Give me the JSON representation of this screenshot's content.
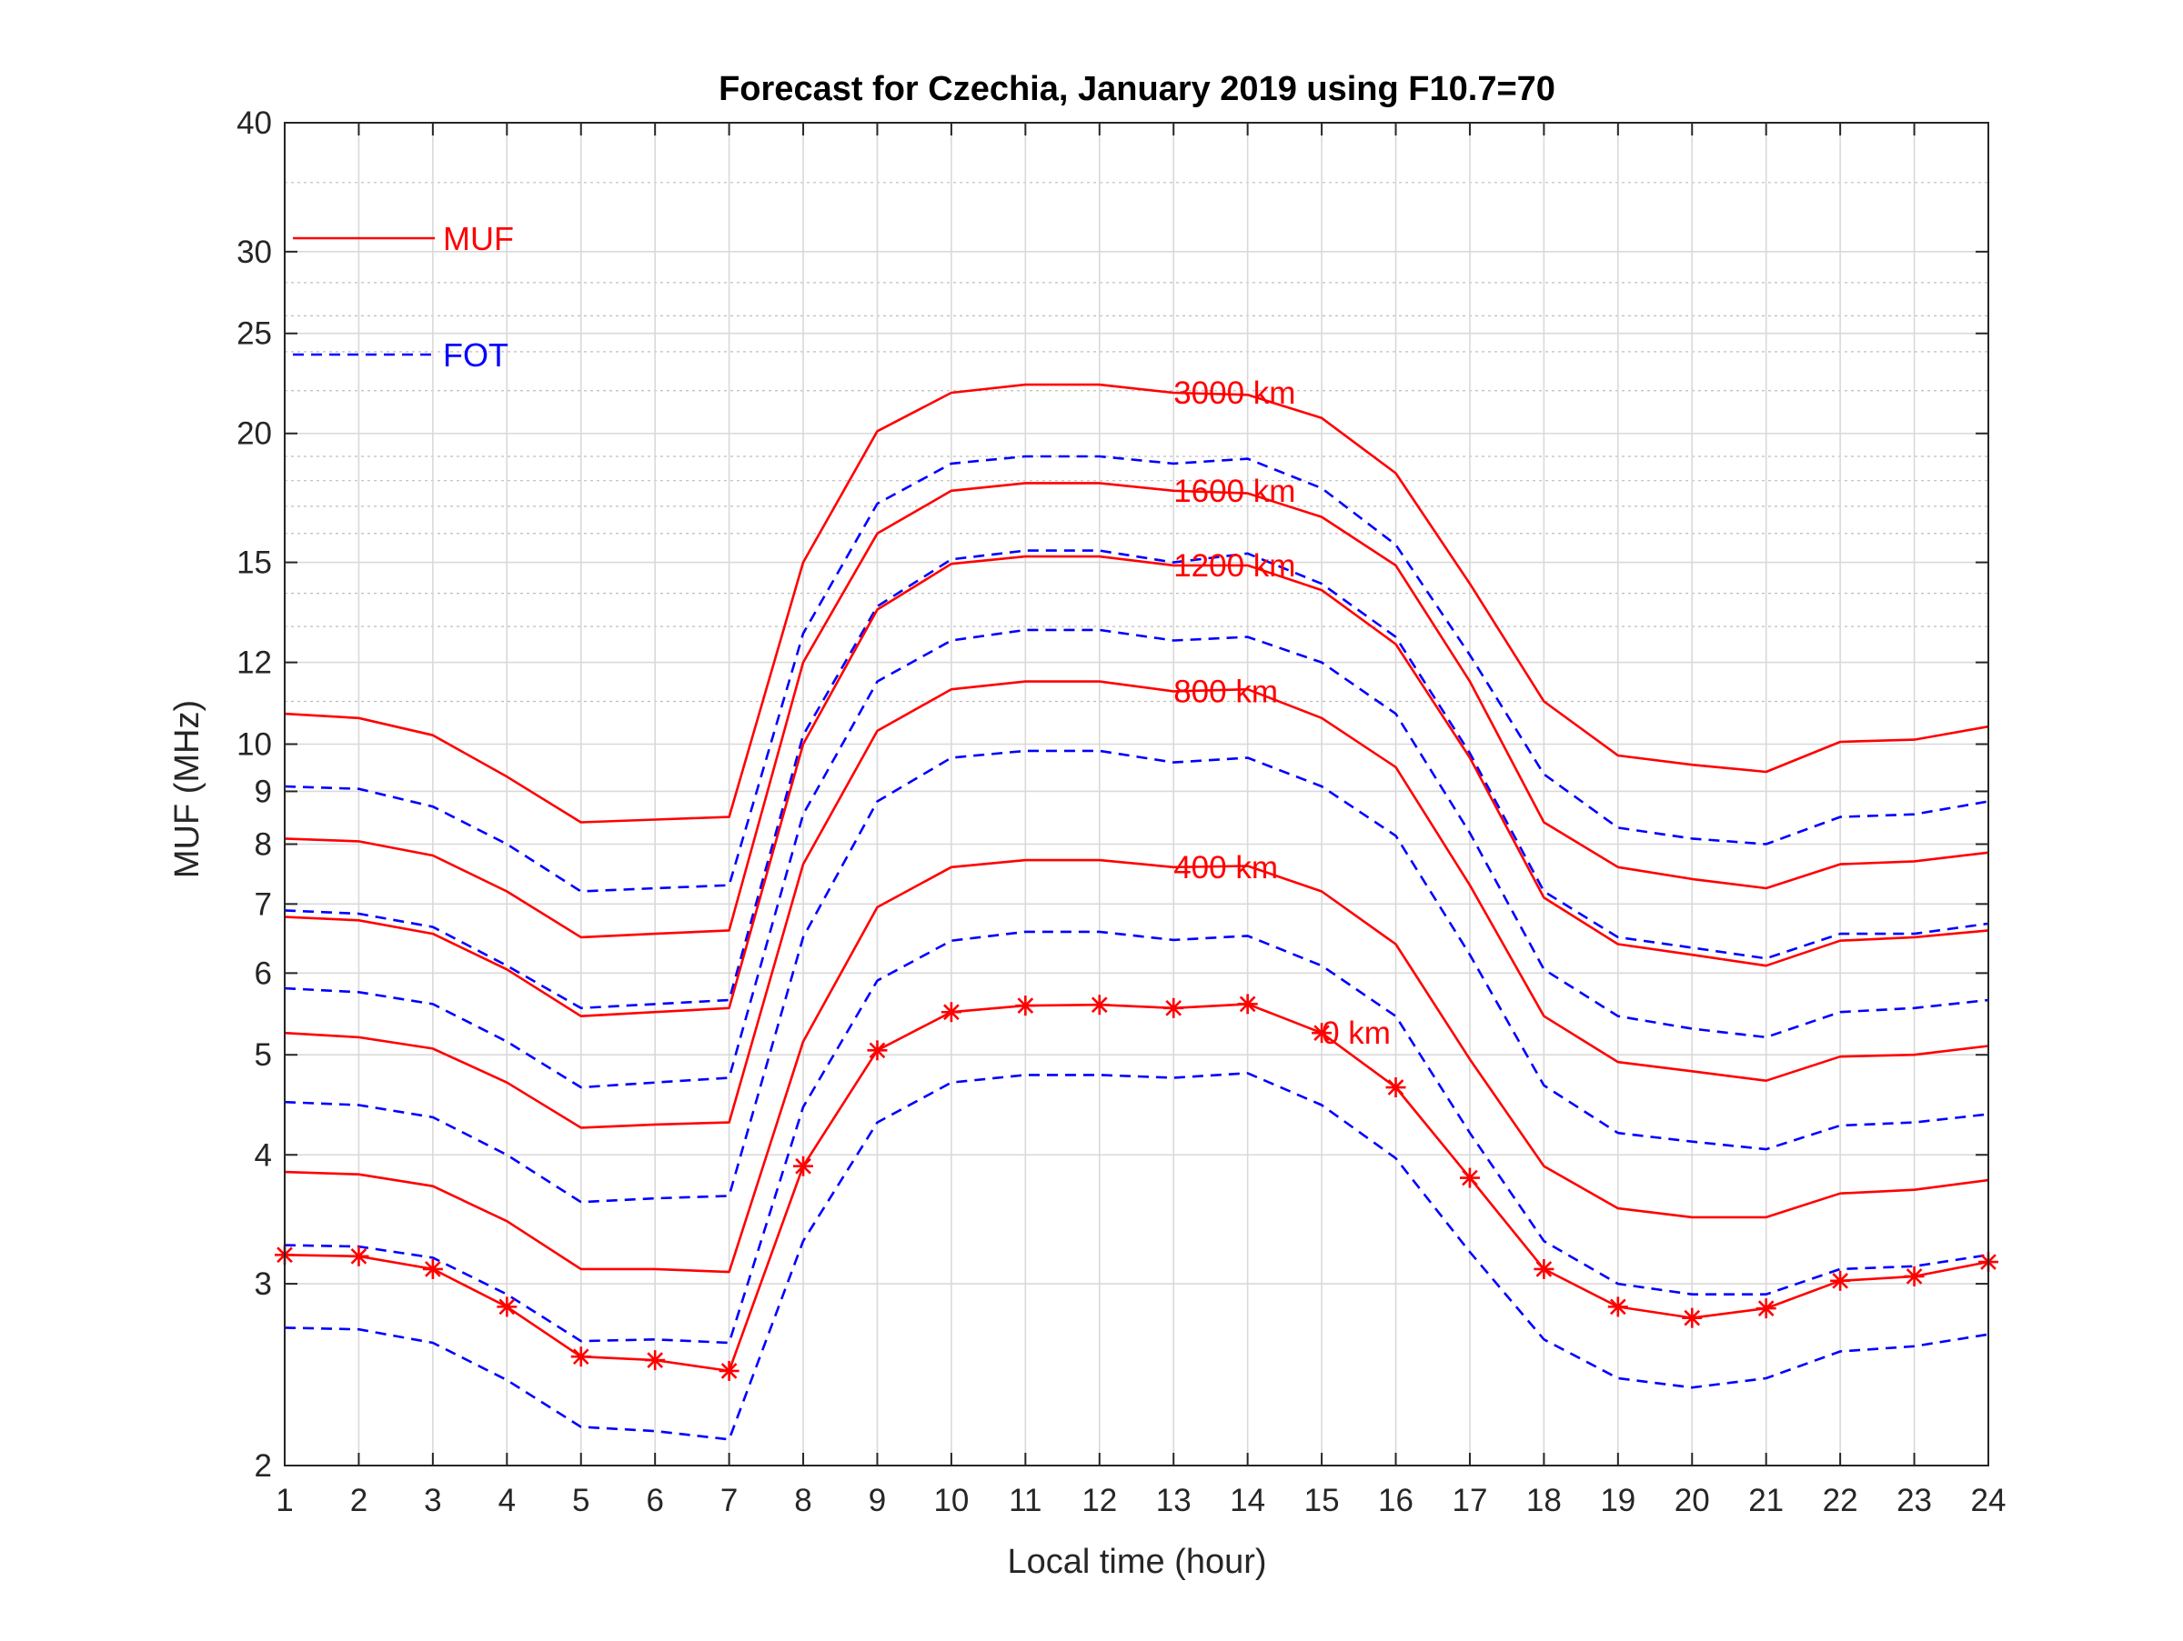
{
  "colors": {
    "muf": "#ff0000",
    "fot": "#0000ff",
    "axis": "#262626"
  },
  "chart_data": {
    "type": "line",
    "title": "Forecast for Czechia, January 2019 using F10.7=70",
    "xlabel": "Local time (hour)",
    "ylabel": "MUF (MHz)",
    "xlim": [
      1,
      24
    ],
    "ylim": [
      2,
      40
    ],
    "yscale": "log",
    "grid": true,
    "x_ticks": [
      "1",
      "2",
      "3",
      "4",
      "5",
      "6",
      "7",
      "8",
      "9",
      "10",
      "11",
      "12",
      "13",
      "14",
      "15",
      "16",
      "17",
      "18",
      "19",
      "20",
      "21",
      "22",
      "23",
      "24"
    ],
    "y_ticks": [
      {
        "value": 2,
        "label": "2"
      },
      {
        "value": 3,
        "label": "3"
      },
      {
        "value": 4,
        "label": "4"
      },
      {
        "value": 5,
        "label": "5"
      },
      {
        "value": 6,
        "label": "6"
      },
      {
        "value": 7,
        "label": "7"
      },
      {
        "value": 8,
        "label": "8"
      },
      {
        "value": 9,
        "label": "9"
      },
      {
        "value": 10,
        "label": "10"
      },
      {
        "value": 12,
        "label": "12"
      },
      {
        "value": 15,
        "label": "15"
      },
      {
        "value": 20,
        "label": "20"
      },
      {
        "value": 25,
        "label": "25"
      },
      {
        "value": 30,
        "label": "30"
      },
      {
        "value": 40,
        "label": "40"
      }
    ],
    "legend": {
      "position": "top-left",
      "entries": [
        {
          "label": "MUF",
          "style": "solid",
          "color": "#ff0000"
        },
        {
          "label": "FOT",
          "style": "dashed",
          "color": "#0000ff"
        }
      ]
    },
    "x": [
      1,
      2,
      3,
      4,
      5,
      6,
      7,
      8,
      9,
      10,
      11,
      12,
      13,
      14,
      15,
      16,
      17,
      18,
      19,
      20,
      21,
      22,
      23,
      24
    ],
    "series": [
      {
        "name": "3000 km",
        "kind": "MUF",
        "label_hour": 13,
        "values": [
          10.7,
          10.6,
          10.2,
          9.3,
          8.4,
          8.45,
          8.5,
          15.0,
          20.1,
          21.9,
          22.3,
          22.3,
          21.9,
          21.8,
          20.7,
          18.3,
          14.3,
          11.0,
          9.75,
          9.55,
          9.4,
          10.05,
          10.1,
          10.4
        ]
      },
      {
        "name": "",
        "kind": "FOT",
        "values": [
          9.1,
          9.05,
          8.7,
          8.0,
          7.2,
          7.25,
          7.3,
          12.8,
          17.1,
          18.7,
          19.0,
          19.0,
          18.7,
          18.9,
          17.7,
          15.6,
          12.2,
          9.35,
          8.3,
          8.1,
          8.0,
          8.5,
          8.55,
          8.8
        ]
      },
      {
        "name": "1600 km",
        "kind": "MUF",
        "label_hour": 13,
        "values": [
          8.1,
          8.05,
          7.8,
          7.2,
          6.5,
          6.55,
          6.6,
          12.0,
          16.0,
          17.6,
          17.9,
          17.9,
          17.6,
          17.5,
          16.6,
          14.9,
          11.5,
          8.4,
          7.6,
          7.4,
          7.25,
          7.65,
          7.7,
          7.85
        ]
      },
      {
        "name": "",
        "kind": "FOT",
        "values": [
          6.9,
          6.85,
          6.65,
          6.1,
          5.55,
          5.6,
          5.65,
          10.2,
          13.6,
          15.1,
          15.4,
          15.4,
          15.0,
          15.3,
          14.3,
          12.7,
          9.8,
          7.2,
          6.5,
          6.35,
          6.2,
          6.55,
          6.55,
          6.7
        ]
      },
      {
        "name": "1200 km",
        "kind": "MUF",
        "label_hour": 13,
        "values": [
          6.8,
          6.75,
          6.55,
          6.05,
          5.45,
          5.5,
          5.55,
          10.0,
          13.5,
          14.95,
          15.2,
          15.2,
          14.9,
          14.9,
          14.1,
          12.5,
          9.7,
          7.1,
          6.4,
          6.25,
          6.1,
          6.45,
          6.5,
          6.6
        ]
      },
      {
        "name": "",
        "kind": "FOT",
        "values": [
          5.8,
          5.75,
          5.6,
          5.15,
          4.65,
          4.7,
          4.75,
          8.55,
          11.5,
          12.6,
          12.9,
          12.9,
          12.6,
          12.7,
          12.0,
          10.7,
          8.2,
          6.05,
          5.45,
          5.3,
          5.2,
          5.5,
          5.55,
          5.65
        ]
      },
      {
        "name": "800 km",
        "kind": "MUF",
        "label_hour": 13,
        "values": [
          5.25,
          5.2,
          5.07,
          4.7,
          4.25,
          4.28,
          4.3,
          7.65,
          10.3,
          11.3,
          11.5,
          11.5,
          11.25,
          11.3,
          10.6,
          9.5,
          7.3,
          5.45,
          4.92,
          4.82,
          4.72,
          4.98,
          5.0,
          5.1
        ]
      },
      {
        "name": "",
        "kind": "FOT",
        "values": [
          4.5,
          4.47,
          4.35,
          4.0,
          3.6,
          3.63,
          3.65,
          6.5,
          8.8,
          9.7,
          9.85,
          9.85,
          9.6,
          9.7,
          9.1,
          8.15,
          6.25,
          4.67,
          4.2,
          4.12,
          4.05,
          4.27,
          4.3,
          4.38
        ]
      },
      {
        "name": "400 km",
        "kind": "MUF",
        "label_hour": 13,
        "values": [
          3.85,
          3.83,
          3.73,
          3.45,
          3.1,
          3.1,
          3.08,
          5.15,
          6.95,
          7.6,
          7.72,
          7.72,
          7.6,
          7.62,
          7.2,
          6.4,
          4.95,
          3.9,
          3.55,
          3.48,
          3.48,
          3.67,
          3.7,
          3.78
        ]
      },
      {
        "name": "",
        "kind": "FOT",
        "values": [
          3.27,
          3.26,
          3.18,
          2.93,
          2.64,
          2.65,
          2.63,
          4.45,
          5.9,
          6.45,
          6.58,
          6.58,
          6.46,
          6.52,
          6.1,
          5.45,
          4.2,
          3.3,
          3.0,
          2.93,
          2.93,
          3.1,
          3.12,
          3.2
        ]
      },
      {
        "name": "0 km",
        "kind": "MUF",
        "markers": "asterisk",
        "label_hour": 15,
        "values": [
          3.2,
          3.19,
          3.1,
          2.85,
          2.55,
          2.53,
          2.47,
          3.9,
          5.05,
          5.5,
          5.58,
          5.59,
          5.55,
          5.6,
          5.25,
          4.65,
          3.8,
          3.1,
          2.85,
          2.78,
          2.84,
          3.02,
          3.05,
          3.15
        ]
      },
      {
        "name": "",
        "kind": "FOT",
        "values": [
          2.72,
          2.71,
          2.63,
          2.42,
          2.18,
          2.16,
          2.12,
          3.3,
          4.3,
          4.7,
          4.78,
          4.78,
          4.75,
          4.8,
          4.47,
          3.97,
          3.22,
          2.65,
          2.43,
          2.38,
          2.43,
          2.58,
          2.61,
          2.68
        ]
      }
    ]
  }
}
